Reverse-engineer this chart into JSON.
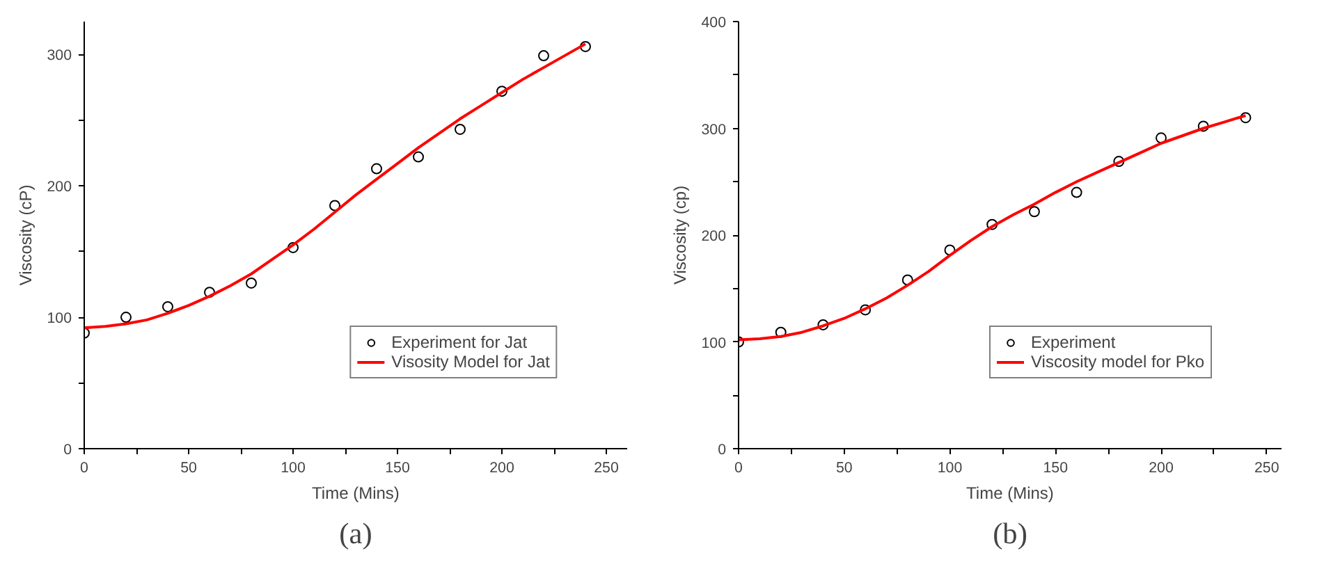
{
  "chart_data": [
    {
      "type": "scatter",
      "xlabel": "Time (Mins)",
      "ylabel": "Viscosity (cP)",
      "xlim": [
        0,
        260
      ],
      "ylim": [
        0,
        325
      ],
      "xticks": [
        0,
        {
          "value": 25,
          "label": null
        },
        50,
        {
          "value": 75,
          "label": null
        },
        100,
        {
          "value": 125,
          "label": null
        },
        150,
        {
          "value": 175,
          "label": null
        },
        200,
        {
          "value": 225,
          "label": null
        },
        250
      ],
      "yticks": [
        0,
        {
          "value": 50,
          "label": null
        },
        100,
        {
          "value": 150,
          "label": null
        },
        200,
        {
          "value": 250,
          "label": null
        },
        300
      ],
      "grid": false,
      "legend": "bottom right",
      "annotations": [
        "(a)"
      ],
      "series": [
        {
          "name": "Experiment for Jat",
          "marker": "circle",
          "color": "#000000",
          "x": [
            0,
            20,
            40,
            60,
            80,
            100,
            120,
            140,
            160,
            180,
            200,
            220,
            240
          ],
          "values": [
            88,
            100,
            108,
            119,
            126,
            153,
            185,
            213,
            222,
            243,
            272,
            299,
            306
          ]
        },
        {
          "name": "Visosity Model for Jat",
          "type": "line",
          "line_style": "solid",
          "color": "#ff0000",
          "x": [
            0,
            10,
            20,
            30,
            40,
            50,
            60,
            70,
            80,
            90,
            100,
            110,
            120,
            130,
            140,
            150,
            160,
            170,
            180,
            190,
            200,
            210,
            220,
            230,
            240
          ],
          "values": [
            92,
            93,
            95,
            98,
            103,
            109,
            116,
            124,
            133,
            144,
            155,
            167,
            180,
            193,
            205,
            217,
            229,
            240,
            251,
            261,
            271,
            281,
            290,
            299,
            308
          ]
        }
      ]
    },
    {
      "type": "scatter",
      "xlabel": "Time (Mins)",
      "ylabel": "Viscosity (cp)",
      "xlim": [
        0,
        257
      ],
      "ylim": [
        0,
        400
      ],
      "xticks": [
        0,
        {
          "value": 25,
          "label": null
        },
        50,
        {
          "value": 75,
          "label": null
        },
        100,
        {
          "value": 125,
          "label": null
        },
        150,
        {
          "value": 175,
          "label": null
        },
        200,
        {
          "value": 225,
          "label": null
        },
        250
      ],
      "yticks": [
        0,
        {
          "value": 50,
          "label": null
        },
        100,
        {
          "value": 150,
          "label": null
        },
        200,
        {
          "value": 250,
          "label": null
        },
        300,
        {
          "value": 350,
          "label": null
        },
        400
      ],
      "grid": false,
      "legend": "bottom right",
      "annotations": [
        "(b)"
      ],
      "series": [
        {
          "name": "Experiment",
          "marker": "circle",
          "color": "#000000",
          "x": [
            0,
            20,
            40,
            60,
            80,
            100,
            120,
            140,
            160,
            180,
            200,
            220,
            240
          ],
          "values": [
            100,
            109,
            116,
            130,
            158,
            186,
            210,
            222,
            240,
            269,
            291,
            302,
            310
          ]
        },
        {
          "name": "Viscosity model for Pko",
          "type": "line",
          "line_style": "solid",
          "color": "#ff0000",
          "x": [
            0,
            10,
            20,
            30,
            40,
            50,
            60,
            70,
            80,
            90,
            100,
            110,
            120,
            130,
            140,
            150,
            160,
            170,
            180,
            190,
            200,
            210,
            220,
            230,
            240
          ],
          "values": [
            102,
            103,
            105,
            109,
            115,
            122,
            131,
            141,
            153,
            166,
            181,
            195,
            208,
            219,
            229,
            240,
            250,
            259,
            268,
            277,
            286,
            293,
            300,
            306,
            312
          ]
        }
      ]
    }
  ]
}
